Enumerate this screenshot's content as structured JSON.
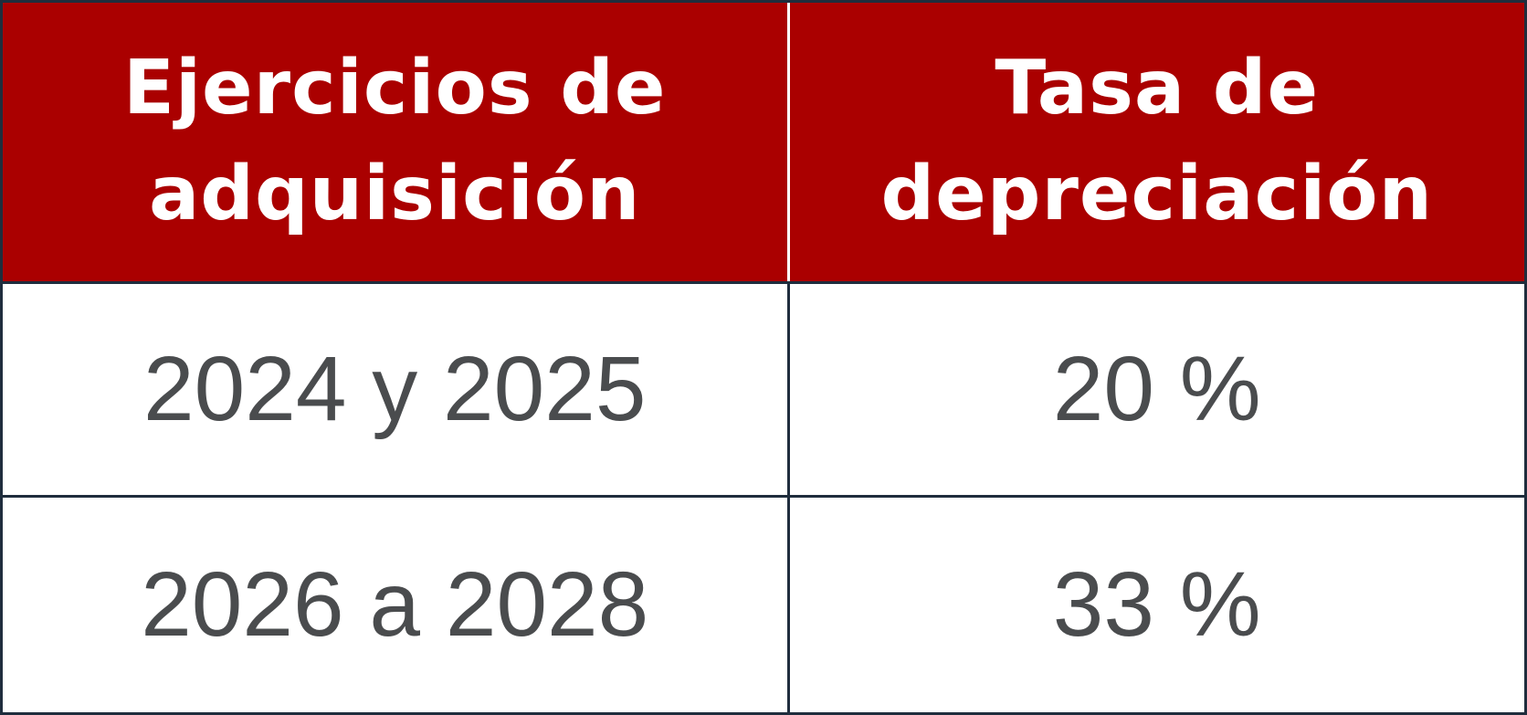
{
  "table": {
    "header": [
      {
        "line1": "Ejercicios de",
        "line2": "adquisición"
      },
      {
        "line1": "Tasa de",
        "line2": "depreciación"
      }
    ],
    "rows": [
      {
        "years": "2024 y 2025",
        "rate": "20 %"
      },
      {
        "years": "2026 a 2028",
        "rate": "33 %"
      }
    ]
  },
  "colors": {
    "header_bg": "#aa0000",
    "header_text": "#ffffff",
    "body_text": "#4a4c4e",
    "border": "#1f2d3d"
  }
}
